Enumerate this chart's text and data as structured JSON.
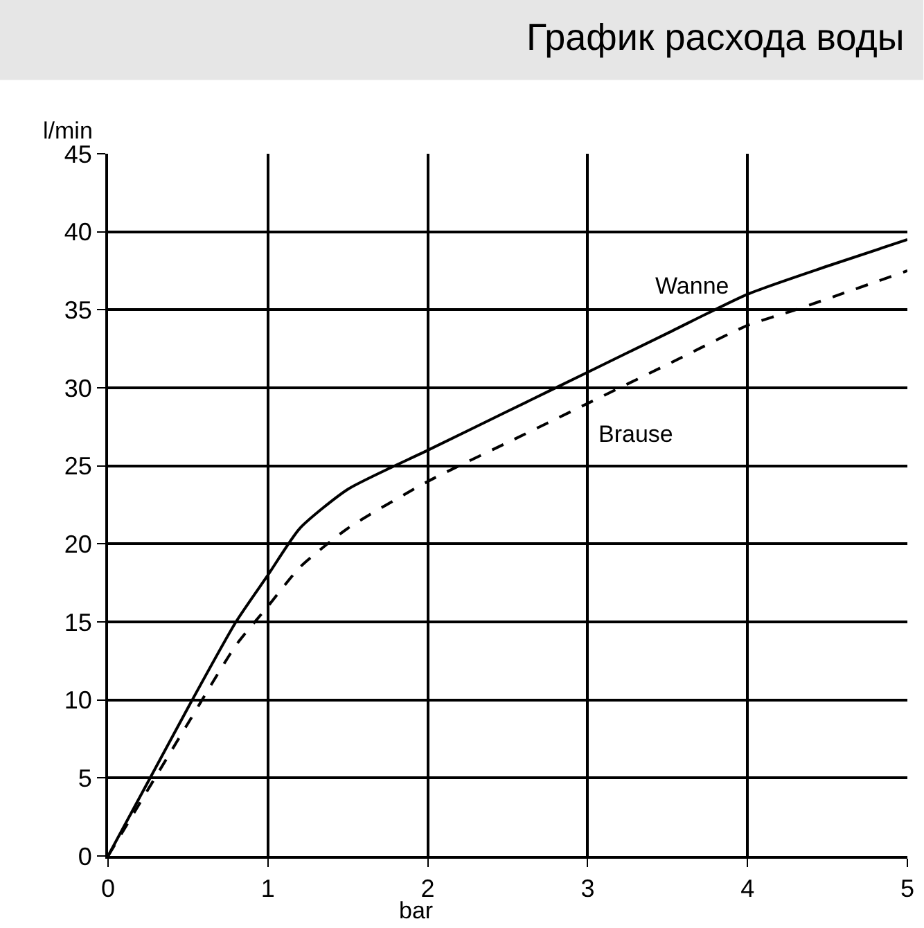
{
  "chart_data": {
    "type": "line",
    "title": "График расхода воды",
    "xlabel": "bar",
    "ylabel": "l/min",
    "xlim": [
      0,
      5
    ],
    "xticks": [
      0,
      1,
      2,
      3,
      4,
      5
    ],
    "ylim": [
      0,
      45
    ],
    "yticks": [
      0,
      5,
      10,
      15,
      20,
      25,
      30,
      35,
      40,
      45
    ],
    "grid": true,
    "legend": false,
    "marker": "none",
    "series": [
      {
        "name": "Wanne",
        "color": "#000000",
        "line_style": "solid",
        "x": [
          0,
          0.5,
          0.8,
          1,
          1.2,
          1.5,
          2,
          2.5,
          3,
          3.5,
          4,
          4.5,
          5
        ],
        "values": [
          0,
          9.5,
          15,
          18,
          21,
          23.5,
          26,
          28.5,
          31,
          33.5,
          36,
          37.8,
          39.5
        ]
      },
      {
        "name": "Brause",
        "color": "#000000",
        "line_style": "dashed",
        "x": [
          0,
          0.5,
          0.8,
          1,
          1.2,
          1.5,
          2,
          2.5,
          3,
          3.5,
          4,
          4.3,
          5
        ],
        "values": [
          0,
          8.5,
          13.5,
          16,
          18.5,
          21,
          24,
          26.5,
          29,
          31.5,
          34,
          35,
          37.5
        ]
      }
    ]
  }
}
